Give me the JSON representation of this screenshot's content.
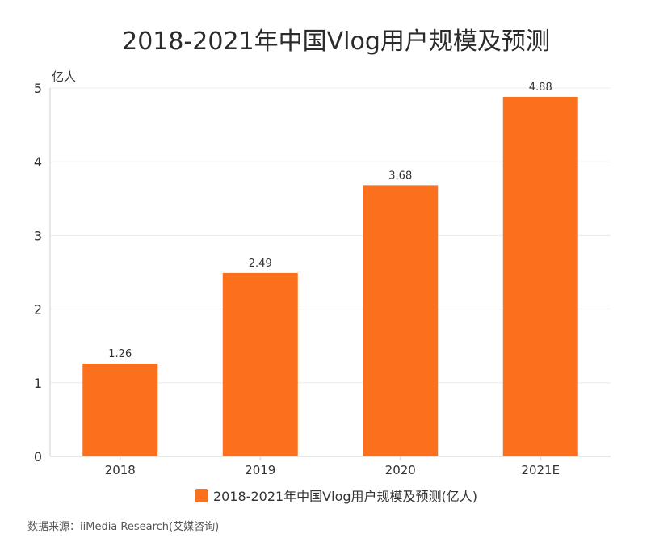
{
  "source": "数据来源：iiMedia Research(艾媒咨询)",
  "colors": {
    "bar": "#fa701c",
    "grid": "#ececec",
    "axis": "#cfcfcf",
    "text": "#333333"
  },
  "chart_data": {
    "type": "bar",
    "title": "2018-2021年中国Vlog用户规模及预测",
    "ylabel": "亿人",
    "xlabel": "",
    "categories": [
      "2018",
      "2019",
      "2020",
      "2021E"
    ],
    "series": [
      {
        "name": "2018-2021年中国Vlog用户规模及预测(亿人)",
        "values": [
          1.26,
          2.49,
          3.68,
          4.88
        ]
      }
    ],
    "data_labels": [
      "1.26",
      "2.49",
      "3.68",
      "4.88"
    ],
    "ylim": [
      0,
      5
    ],
    "yticks": [
      "0",
      "1",
      "2",
      "3",
      "4",
      "5"
    ],
    "grid": true,
    "legend_position": "bottom"
  }
}
